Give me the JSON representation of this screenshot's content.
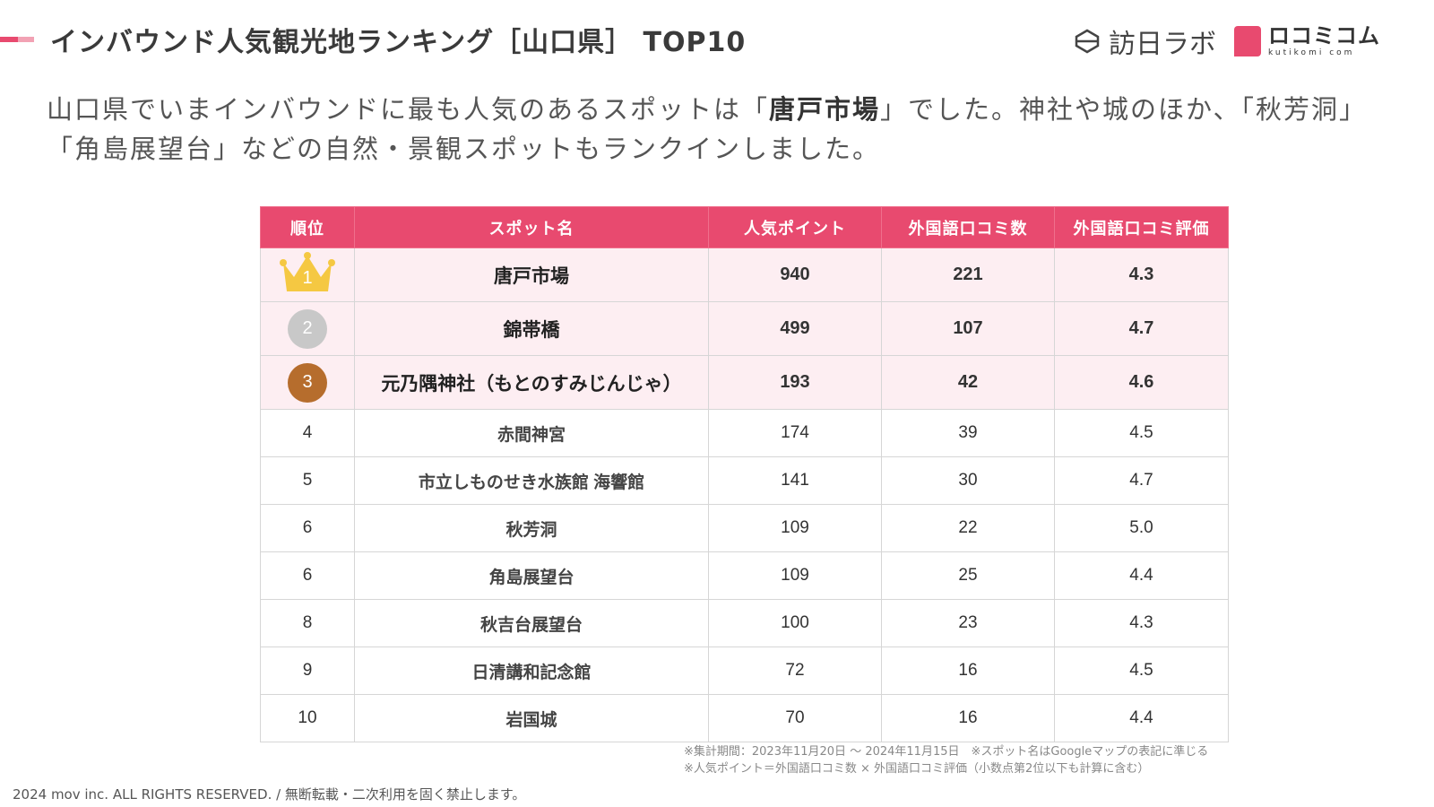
{
  "header": {
    "title": "インバウンド人気観光地ランキング［山口県］ TOP10",
    "brand_lab": "訪日ラボ",
    "brand_kuti": "ロコミコム",
    "brand_kuti_sub": "kutikomi com",
    "accent_colors": [
      "#e84a6f",
      "#f2a2b4"
    ]
  },
  "lead": {
    "before": "山口県でいまインバウンドに最も人気のあるスポットは「",
    "highlight": "唐戸市場",
    "after": "」でした。神社や城のほか、「秋芳洞」「角島展望台」などの自然・景観スポットもランクインしました。"
  },
  "table": {
    "headers": [
      "順位",
      "スポット名",
      "人気ポイント",
      "外国語口コミ数",
      "外国語口コミ評価"
    ],
    "rows": [
      {
        "rank": "1",
        "name": "唐戸市場",
        "points": "940",
        "reviews": "221",
        "rating": "4.3"
      },
      {
        "rank": "2",
        "name": "錦帯橋",
        "points": "499",
        "reviews": "107",
        "rating": "4.7"
      },
      {
        "rank": "3",
        "name": "元乃隅神社（もとのすみじんじゃ）",
        "points": "193",
        "reviews": "42",
        "rating": "4.6"
      },
      {
        "rank": "4",
        "name": "赤間神宮",
        "points": "174",
        "reviews": "39",
        "rating": "4.5"
      },
      {
        "rank": "5",
        "name": "市立しものせき水族館 海響館",
        "points": "141",
        "reviews": "30",
        "rating": "4.7"
      },
      {
        "rank": "6",
        "name": "秋芳洞",
        "points": "109",
        "reviews": "22",
        "rating": "5.0"
      },
      {
        "rank": "6",
        "name": "角島展望台",
        "points": "109",
        "reviews": "25",
        "rating": "4.4"
      },
      {
        "rank": "8",
        "name": "秋吉台展望台",
        "points": "100",
        "reviews": "23",
        "rating": "4.3"
      },
      {
        "rank": "9",
        "name": "日清講和記念館",
        "points": "72",
        "reviews": "16",
        "rating": "4.5"
      },
      {
        "rank": "10",
        "name": "岩国城",
        "points": "70",
        "reviews": "16",
        "rating": "4.4"
      }
    ],
    "header_color": "#e84a6f",
    "top_row_color": "#fdeef2",
    "badge_colors": {
      "gold": "#f5c842",
      "silver": "#c8c8c8",
      "bronze": "#b66d2d"
    }
  },
  "notes": [
    "※集計期間：2023年11月20日 〜 2024年11月15日　※スポット名はGoogleマップの表記に準じる",
    "※人気ポイント＝外国語口コミ数 × 外国語口コミ評価（小数点第2位以下も計算に含む）"
  ],
  "footer": {
    "copyright": "2024 mov inc. ALL RIGHTS RESERVED. / 無断転載・二次利用を固く禁止します。"
  }
}
